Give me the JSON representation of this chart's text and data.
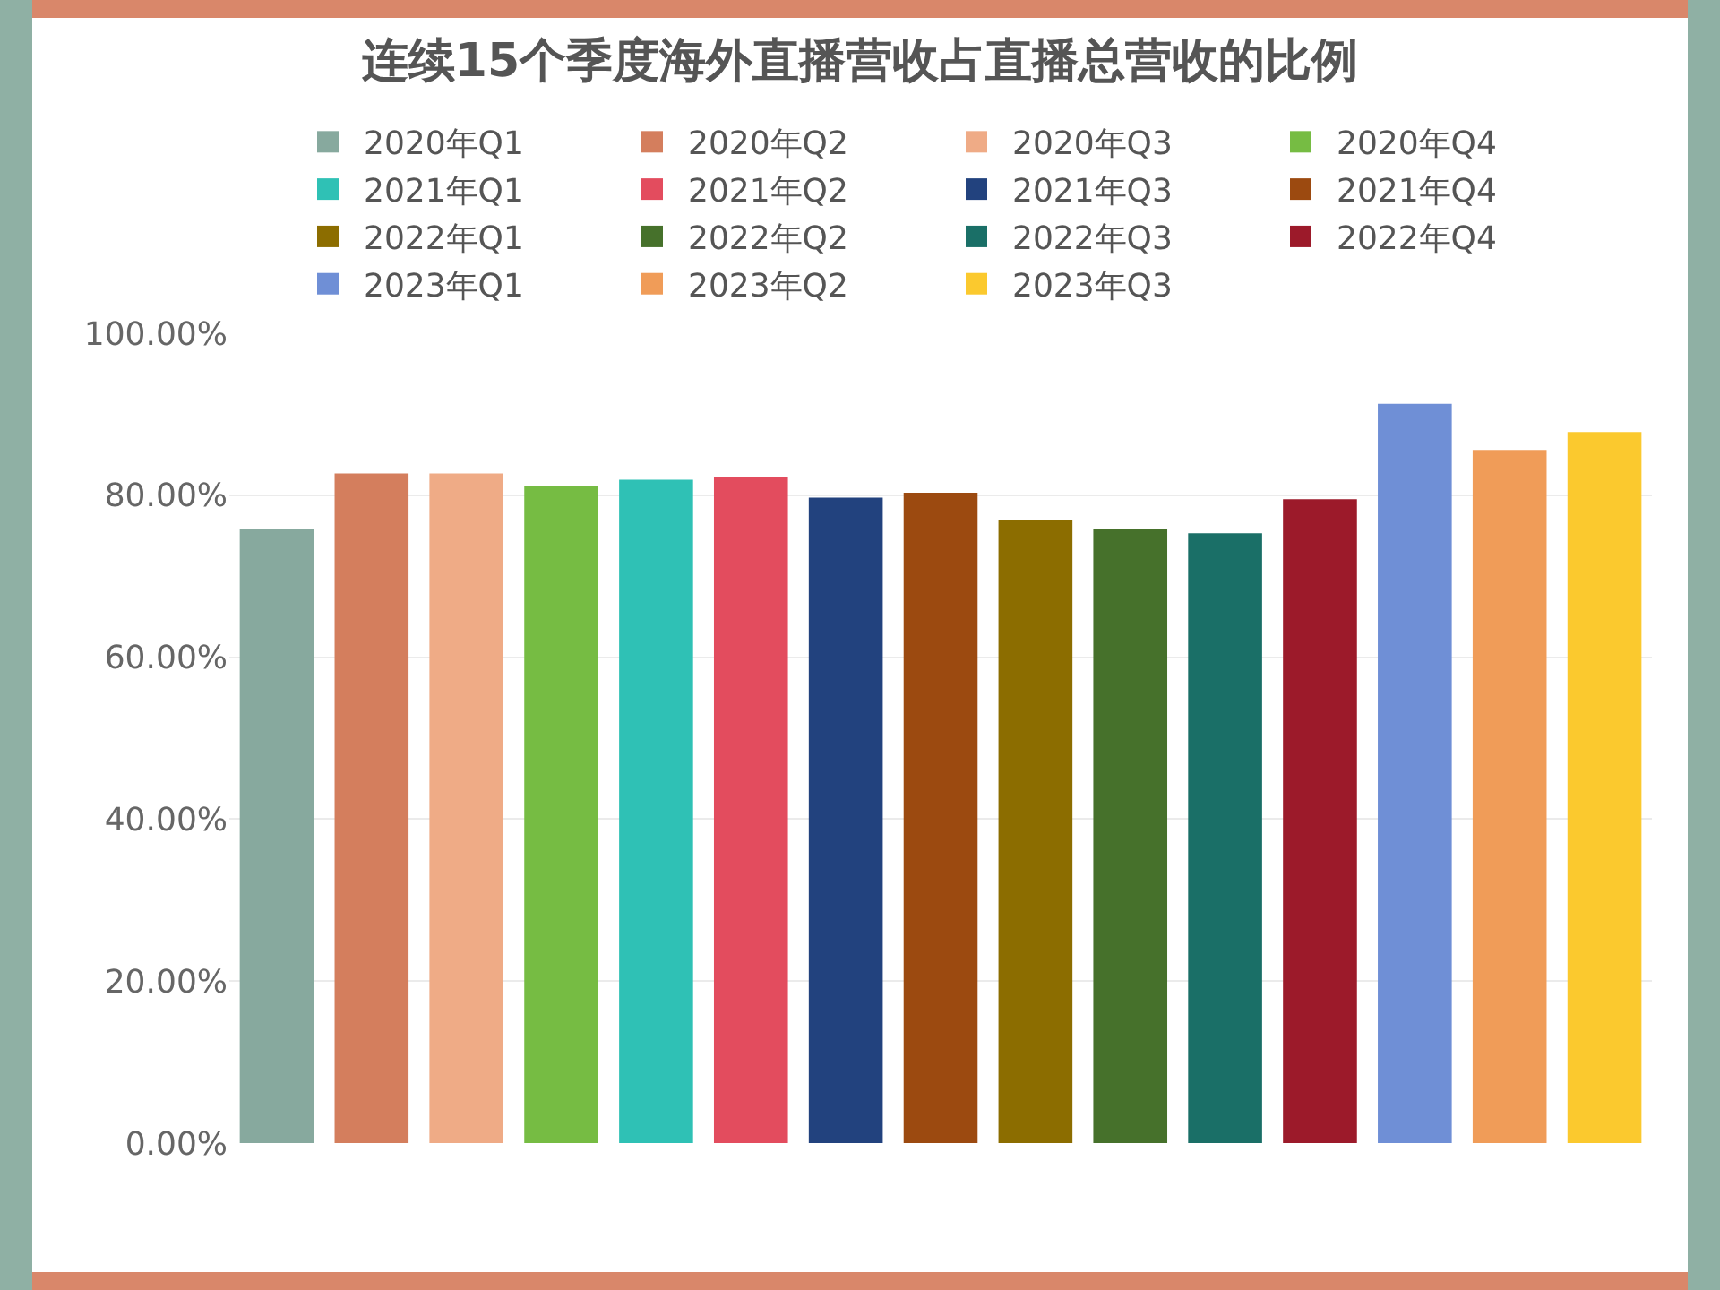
{
  "chart_data": {
    "type": "bar",
    "title": "连续15个季度海外直播营收占直播总营收的比例",
    "categories": [
      null,
      null,
      null,
      null,
      null,
      null,
      null,
      null,
      null,
      null,
      null,
      null,
      null,
      null,
      null
    ],
    "series": [
      {
        "name": "2020年Q1",
        "color": "#87a99e",
        "values": [
          75.8,
          null,
          null,
          null,
          null,
          null,
          null,
          null,
          null,
          null,
          null,
          null,
          null,
          null,
          null
        ]
      },
      {
        "name": "2020年Q2",
        "color": "#d47e5d",
        "values": [
          null,
          82.7,
          null,
          null,
          null,
          null,
          null,
          null,
          null,
          null,
          null,
          null,
          null,
          null,
          null
        ]
      },
      {
        "name": "2020年Q3",
        "color": "#efab86",
        "values": [
          null,
          null,
          82.7,
          null,
          null,
          null,
          null,
          null,
          null,
          null,
          null,
          null,
          null,
          null,
          null
        ]
      },
      {
        "name": "2020年Q4",
        "color": "#76bc43",
        "values": [
          null,
          null,
          null,
          81.1,
          null,
          null,
          null,
          null,
          null,
          null,
          null,
          null,
          null,
          null,
          null
        ]
      },
      {
        "name": "2021年Q1",
        "color": "#2fc1b5",
        "values": [
          null,
          null,
          null,
          null,
          81.9,
          null,
          null,
          null,
          null,
          null,
          null,
          null,
          null,
          null,
          null
        ]
      },
      {
        "name": "2021年Q2",
        "color": "#e34c5e",
        "values": [
          null,
          null,
          null,
          null,
          null,
          82.2,
          null,
          null,
          null,
          null,
          null,
          null,
          null,
          null,
          null
        ]
      },
      {
        "name": "2021年Q3",
        "color": "#22427e",
        "values": [
          null,
          null,
          null,
          null,
          null,
          null,
          79.7,
          null,
          null,
          null,
          null,
          null,
          null,
          null,
          null
        ]
      },
      {
        "name": "2021年Q4",
        "color": "#9c4a10",
        "values": [
          null,
          null,
          null,
          null,
          null,
          null,
          null,
          80.3,
          null,
          null,
          null,
          null,
          null,
          null,
          null
        ]
      },
      {
        "name": "2022年Q1",
        "color": "#8c6d00",
        "values": [
          null,
          null,
          null,
          null,
          null,
          null,
          null,
          null,
          76.9,
          null,
          null,
          null,
          null,
          null,
          null
        ]
      },
      {
        "name": "2022年Q2",
        "color": "#46712b",
        "values": [
          null,
          null,
          null,
          null,
          null,
          null,
          null,
          null,
          null,
          75.8,
          null,
          null,
          null,
          null,
          null
        ]
      },
      {
        "name": "2022年Q3",
        "color": "#1a6f67",
        "values": [
          null,
          null,
          null,
          null,
          null,
          null,
          null,
          null,
          null,
          null,
          75.3,
          null,
          null,
          null,
          null
        ]
      },
      {
        "name": "2022年Q4",
        "color": "#9c1a2a",
        "values": [
          null,
          null,
          null,
          null,
          null,
          null,
          null,
          null,
          null,
          null,
          null,
          79.5,
          null,
          null,
          null
        ]
      },
      {
        "name": "2023年Q1",
        "color": "#6f8fd6",
        "values": [
          null,
          null,
          null,
          null,
          null,
          null,
          null,
          null,
          null,
          null,
          null,
          null,
          91.3,
          null,
          null
        ]
      },
      {
        "name": "2023年Q2",
        "color": "#f09c58",
        "values": [
          null,
          null,
          null,
          null,
          null,
          null,
          null,
          null,
          null,
          null,
          null,
          null,
          null,
          85.6,
          null
        ]
      },
      {
        "name": "2023年Q3",
        "color": "#fbc92e",
        "values": [
          null,
          null,
          null,
          null,
          null,
          null,
          null,
          null,
          null,
          null,
          null,
          null,
          null,
          null,
          87.8
        ]
      }
    ],
    "ylim": [
      0,
      100
    ],
    "yticks": [
      {
        "value": 0,
        "label": "0.00%"
      },
      {
        "value": 20,
        "label": "20.00%"
      },
      {
        "value": 40,
        "label": "40.00%"
      },
      {
        "value": 60,
        "label": "60.00%"
      },
      {
        "value": 80,
        "label": "80.00%"
      },
      {
        "value": 100,
        "label": "100.00%"
      }
    ],
    "grid": "y",
    "legend": "top",
    "tick_labels": "y"
  }
}
